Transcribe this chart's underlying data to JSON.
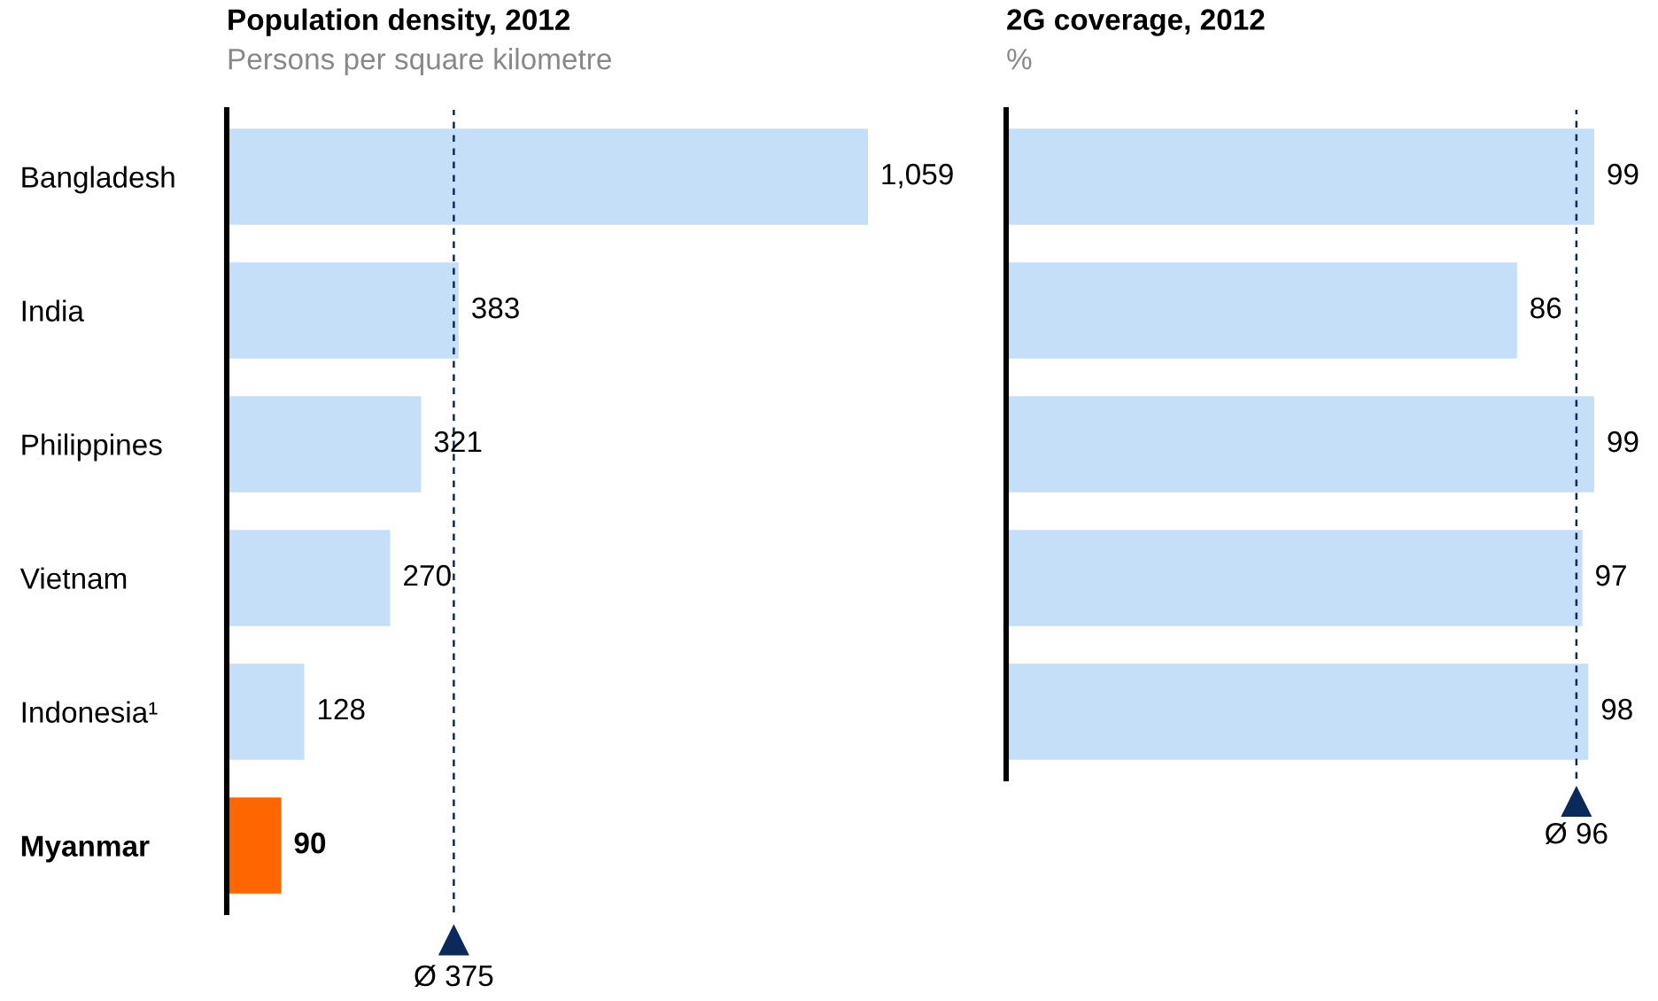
{
  "chart_data": [
    {
      "type": "bar",
      "orientation": "horizontal",
      "title": "Population density, 2012",
      "subtitle": "Persons per square kilometre",
      "categories": [
        "Bangladesh",
        "India",
        "Philippines",
        "Vietnam",
        "Indonesia¹",
        "Myanmar"
      ],
      "values": [
        1059,
        383,
        321,
        270,
        128,
        90
      ],
      "value_labels": [
        "1,059",
        "383",
        "321",
        "270",
        "128",
        "90"
      ],
      "colors": [
        "#c6dff8",
        "#c6dff8",
        "#c6dff8",
        "#c6dff8",
        "#c6dff8",
        "#ff6600"
      ],
      "tick_labels": "y",
      "grid": false,
      "ref_lines": [
        {
          "axis": "x",
          "value": 375,
          "label": "Ø 375",
          "color": "#0b2a5b",
          "line_style": "dashed"
        }
      ]
    },
    {
      "type": "bar",
      "orientation": "horizontal",
      "title": "2G coverage, 2012",
      "subtitle": "%",
      "categories": [
        null,
        null,
        null,
        null,
        null
      ],
      "values": [
        99,
        86,
        99,
        97,
        98
      ],
      "data_labels": true,
      "colors": [
        "#c6dff8",
        "#c6dff8",
        "#c6dff8",
        "#c6dff8",
        "#c6dff8"
      ],
      "tick_labels": false,
      "grid": false,
      "ref_lines": [
        {
          "axis": "x",
          "value": 96,
          "label": "Ø 96",
          "color": "#0b2a5b",
          "line_style": "dashed"
        }
      ]
    }
  ]
}
